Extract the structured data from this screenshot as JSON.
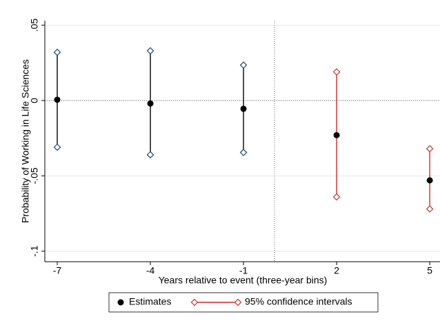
{
  "chart_data": {
    "type": "errorbar",
    "y_label": "Probability of Working in Life Sciences",
    "x_label": "Years relative to event (three-year bins)",
    "x": [
      -7,
      -4,
      -1,
      2,
      5
    ],
    "series": [
      {
        "name": "Estimates",
        "color": "#000000",
        "values": [
          0.0005,
          -0.002,
          -0.0055,
          -0.023,
          -0.053
        ]
      }
    ],
    "ci": {
      "name": "95% confidence intervals",
      "lower": [
        -0.031,
        -0.036,
        -0.0345,
        -0.064,
        -0.072
      ],
      "upper": [
        0.032,
        0.033,
        0.0235,
        0.019,
        -0.032
      ],
      "line_colors": [
        "#000000",
        "#000000",
        "#000000",
        "#d62728",
        "#d62728"
      ],
      "marker_colors": [
        "#1a476f",
        "#1a476f",
        "#1a476f",
        "#c0392b",
        "#c0392b"
      ],
      "legend_color": "#d62728"
    },
    "xlim": [
      -7.4,
      5.33
    ],
    "ylim": [
      -0.107,
      0.053
    ],
    "xticks": [
      -7,
      -4,
      -1,
      2,
      5
    ],
    "yticks": [
      {
        "value": -0.1,
        "label": "-.1"
      },
      {
        "value": -0.05,
        "label": "-.05"
      },
      0,
      {
        "value": 0.05,
        "label": ".05"
      }
    ],
    "grid": true,
    "xline": 0,
    "yline": 0,
    "legend": "bottom"
  }
}
